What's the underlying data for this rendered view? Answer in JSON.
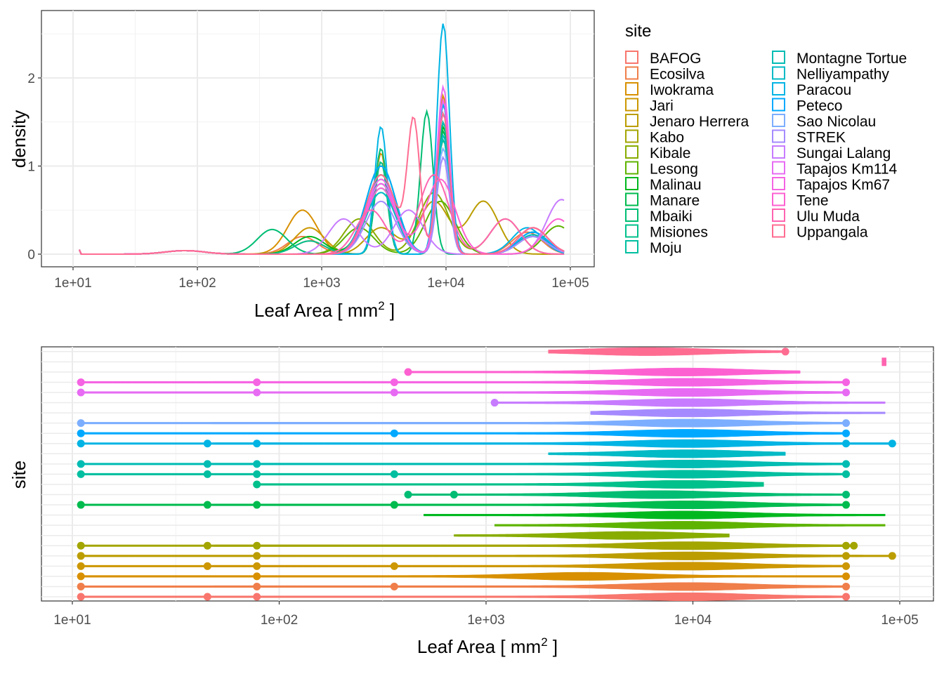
{
  "chart_data": [
    {
      "type": "line",
      "title": "",
      "xlabel": "Leaf Area [ mm",
      "xlabel_sup": "2",
      "xlabel_end": " ]",
      "ylabel": "density",
      "x_scale": "log10",
      "xlim": [
        10,
        100000
      ],
      "ylim": [
        0,
        2.6
      ],
      "x_ticks": [
        "1e+01",
        "1e+02",
        "1e+03",
        "1e+04",
        "1e+05"
      ],
      "y_ticks": [
        "0",
        "1",
        "2"
      ],
      "grid": true,
      "legend": {
        "title": "site",
        "placement": "right",
        "entries": [
          "BAFOG",
          "Ecosilva",
          "Iwokrama",
          "Jari",
          "Jenaro Herrera",
          "Kabo",
          "Kibale",
          "Lesong",
          "Malinau",
          "Manare",
          "Mbaiki",
          "Misiones",
          "Moju",
          "Montagne Tortue",
          "Nelliyampathy",
          "Paracou",
          "Peteco",
          "Sao Nicolau",
          "STREK",
          "Sungai Lalang",
          "Tapajos Km114",
          "Tapajos Km67",
          "Tene",
          "Ulu Muda",
          "Uppangala"
        ]
      },
      "series": [
        {
          "name": "BAFOG",
          "color": "#F8766D",
          "peaks": [
            [
              800,
              0.15
            ],
            [
              3000,
              0.85
            ],
            [
              9500,
              1.5
            ],
            [
              50000,
              0.2
            ]
          ]
        },
        {
          "name": "Ecosilva",
          "color": "#F07E4A",
          "peaks": [
            [
              700,
              0.2
            ],
            [
              3000,
              0.9
            ],
            [
              9500,
              1.6
            ],
            [
              45000,
              0.25
            ]
          ]
        },
        {
          "name": "Iwokrama",
          "color": "#D89000",
          "peaks": [
            [
              700,
              0.5
            ],
            [
              3000,
              1.15
            ],
            [
              9500,
              1.8
            ],
            [
              50000,
              0.3
            ]
          ]
        },
        {
          "name": "Jari",
          "color": "#CC9700",
          "peaks": [
            [
              800,
              0.3
            ],
            [
              3000,
              1.05
            ],
            [
              9500,
              1.7
            ],
            [
              50000,
              0.3
            ]
          ]
        },
        {
          "name": "Jenaro Herrera",
          "color": "#BB9D00",
          "peaks": [
            [
              3000,
              0.3
            ],
            [
              8000,
              0.6
            ],
            [
              20000,
              0.6
            ]
          ]
        },
        {
          "name": "Kabo",
          "color": "#A3A500",
          "peaks": [
            [
              3000,
              0.9
            ],
            [
              9500,
              1.3
            ],
            [
              50000,
              0.25
            ]
          ]
        },
        {
          "name": "Kibale",
          "color": "#88AC00",
          "peaks": [
            [
              2000,
              0.4
            ],
            [
              8000,
              0.7
            ],
            [
              30000,
              0.4
            ]
          ]
        },
        {
          "name": "Lesong",
          "color": "#5EB300",
          "peaks": [
            [
              2000,
              0.3
            ],
            [
              9000,
              0.6
            ],
            [
              80000,
              0.32
            ]
          ]
        },
        {
          "name": "Malinau",
          "color": "#00B81F",
          "peaks": [
            [
              800,
              0.2
            ],
            [
              3000,
              1.0
            ],
            [
              9500,
              1.45
            ],
            [
              50000,
              0.2
            ]
          ]
        },
        {
          "name": "Manare",
          "color": "#00BB4E",
          "peaks": [
            [
              3000,
              0.9
            ],
            [
              9500,
              1.4
            ],
            [
              50000,
              0.25
            ]
          ]
        },
        {
          "name": "Mbaiki",
          "color": "#00BD73",
          "peaks": [
            [
              400,
              0.28
            ],
            [
              3000,
              1.2
            ],
            [
              7000,
              1.62
            ],
            [
              50000,
              0.2
            ]
          ]
        },
        {
          "name": "Misiones",
          "color": "#00C08B",
          "peaks": [
            [
              800,
              0.15
            ],
            [
              3000,
              1.05
            ],
            [
              9500,
              1.6
            ],
            [
              50000,
              0.2
            ]
          ]
        },
        {
          "name": "Moju",
          "color": "#00BFA0",
          "peaks": [
            [
              3000,
              0.75
            ],
            [
              9500,
              1.3
            ],
            [
              50000,
              0.2
            ]
          ]
        },
        {
          "name": "Montagne Tortue",
          "color": "#00BCB3",
          "peaks": [
            [
              3000,
              0.8
            ],
            [
              9500,
              1.5
            ],
            [
              50000,
              0.22
            ]
          ]
        },
        {
          "name": "Nelliyampathy",
          "color": "#00BAC6",
          "peaks": [
            [
              3000,
              0.7
            ],
            [
              9500,
              1.35
            ],
            [
              50000,
              0.25
            ]
          ]
        },
        {
          "name": "Paracou",
          "color": "#00B4E4",
          "peaks": [
            [
              3000,
              1.45
            ],
            [
              9500,
              2.62
            ],
            [
              45000,
              0.3
            ]
          ]
        },
        {
          "name": "Peteco",
          "color": "#00A9FF",
          "peaks": [
            [
              3000,
              1.0
            ],
            [
              9500,
              1.7
            ],
            [
              50000,
              0.25
            ]
          ]
        },
        {
          "name": "Sao Nicolau",
          "color": "#7CAEFF",
          "peaks": [
            [
              3000,
              0.8
            ],
            [
              9500,
              1.2
            ],
            [
              50000,
              0.2
            ]
          ]
        },
        {
          "name": "STREK",
          "color": "#A58AFF",
          "peaks": [
            [
              3000,
              0.6
            ],
            [
              9500,
              1.1
            ],
            [
              50000,
              0.2
            ]
          ]
        },
        {
          "name": "Sungai Lalang",
          "color": "#C77CFF",
          "peaks": [
            [
              1500,
              0.4
            ],
            [
              5000,
              0.5
            ],
            [
              85000,
              0.62
            ]
          ]
        },
        {
          "name": "Tapajos Km114",
          "color": "#E76BF3",
          "peaks": [
            [
              3000,
              0.85
            ],
            [
              9500,
              1.9
            ],
            [
              50000,
              0.3
            ]
          ]
        },
        {
          "name": "Tapajos Km67",
          "color": "#F564E3",
          "peaks": [
            [
              3000,
              0.8
            ],
            [
              9500,
              1.75
            ],
            [
              50000,
              0.3
            ]
          ]
        },
        {
          "name": "Tene",
          "color": "#FD61D1",
          "peaks": [
            [
              3000,
              0.75
            ],
            [
              9000,
              0.85
            ],
            [
              80000,
              0.4
            ]
          ]
        },
        {
          "name": "Ulu Muda",
          "color": "#FF64B0",
          "peaks": [
            [
              2500,
              0.5
            ],
            [
              8000,
              0.9
            ],
            [
              30000,
              0.4
            ]
          ]
        },
        {
          "name": "Uppangala",
          "color": "#FF6C91",
          "peaks": [
            [
              3000,
              0.9
            ],
            [
              5500,
              1.48
            ],
            [
              9500,
              1.6
            ],
            [
              50000,
              0.3
            ]
          ]
        }
      ]
    },
    {
      "type": "violin",
      "title": "",
      "xlabel": "Leaf Area [ mm",
      "xlabel_sup": "2",
      "xlabel_end": " ]",
      "ylabel": "site",
      "x_scale": "log10",
      "xlim": [
        10,
        100000
      ],
      "x_ticks": [
        "1e+01",
        "1e+02",
        "1e+03",
        "1e+04",
        "1e+05"
      ],
      "grid": true,
      "rows": [
        {
          "site": "BAFOG",
          "range": [
            11,
            55000
          ],
          "outliers": [
            11,
            45,
            78,
            55000
          ],
          "center": 9500
        },
        {
          "site": "Ecosilva",
          "range": [
            11,
            55000
          ],
          "outliers": [
            11,
            78,
            360,
            55000
          ],
          "center": 9500
        },
        {
          "site": "Iwokrama",
          "range": [
            11,
            55000
          ],
          "outliers": [
            11,
            78,
            55000
          ],
          "center": 3000
        },
        {
          "site": "Jari",
          "range": [
            11,
            55000
          ],
          "outliers": [
            11,
            45,
            78,
            360,
            55000
          ],
          "center": 9500
        },
        {
          "site": "Jenaro Herrera",
          "range": [
            11,
            92000
          ],
          "outliers": [
            11,
            78,
            55000,
            92000
          ],
          "center": 9500
        },
        {
          "site": "Kabo",
          "range": [
            11,
            60000
          ],
          "outliers": [
            11,
            45,
            78,
            55000,
            60000
          ],
          "center": 9500
        },
        {
          "site": "Kibale",
          "range": [
            700,
            15000
          ],
          "outliers": [],
          "center": 5000
        },
        {
          "site": "Lesong",
          "range": [
            1100,
            85000
          ],
          "outliers": [],
          "center": 9000
        },
        {
          "site": "Malinau",
          "range": [
            500,
            85000
          ],
          "outliers": [],
          "center": 9000
        },
        {
          "site": "Manare",
          "range": [
            11,
            55000
          ],
          "outliers": [
            11,
            45,
            78,
            360,
            55000
          ],
          "center": 9500
        },
        {
          "site": "Mbaiki",
          "range": [
            420,
            55000
          ],
          "outliers": [
            420,
            700,
            55000
          ],
          "center": 7000
        },
        {
          "site": "Misiones",
          "range": [
            78,
            22000
          ],
          "outliers": [
            78
          ],
          "center": 9000
        },
        {
          "site": "Moju",
          "range": [
            11,
            55000
          ],
          "outliers": [
            11,
            45,
            78,
            360,
            55000
          ],
          "center": 9500
        },
        {
          "site": "Montagne Tortue",
          "range": [
            11,
            55000
          ],
          "outliers": [
            11,
            45,
            78,
            55000
          ],
          "center": 9500
        },
        {
          "site": "Nelliyampathy",
          "range": [
            2000,
            28000
          ],
          "outliers": [],
          "center": 9500
        },
        {
          "site": "Paracou",
          "range": [
            11,
            92000
          ],
          "outliers": [
            11,
            45,
            78,
            55000,
            92000
          ],
          "center": 9500
        },
        {
          "site": "Peteco",
          "range": [
            11,
            55000
          ],
          "outliers": [
            11,
            360,
            55000
          ],
          "center": 9500
        },
        {
          "site": "Sao Nicolau",
          "range": [
            11,
            55000
          ],
          "outliers": [
            11,
            55000
          ],
          "center": 9500
        },
        {
          "site": "STREK",
          "range": [
            3200,
            85000
          ],
          "outliers": [],
          "center": 9500
        },
        {
          "site": "Sungai Lalang",
          "range": [
            1100,
            85000
          ],
          "outliers": [
            1100
          ],
          "center": 9500
        },
        {
          "site": "Tapajos Km114",
          "range": [
            11,
            55000
          ],
          "outliers": [
            11,
            78,
            360,
            55000
          ],
          "center": 9500
        },
        {
          "site": "Tapajos Km67",
          "range": [
            11,
            55000
          ],
          "outliers": [
            11,
            78,
            360,
            55000
          ],
          "center": 9500
        },
        {
          "site": "Tene",
          "range": [
            420,
            33000
          ],
          "outliers": [
            420
          ],
          "center": 9000
        },
        {
          "site": "Ulu Muda",
          "range": [
            82000,
            86000
          ],
          "outliers": [],
          "center": 84000
        },
        {
          "site": "Uppangala",
          "range": [
            2000,
            28000
          ],
          "outliers": [
            28000
          ],
          "center": 6000
        }
      ]
    }
  ]
}
